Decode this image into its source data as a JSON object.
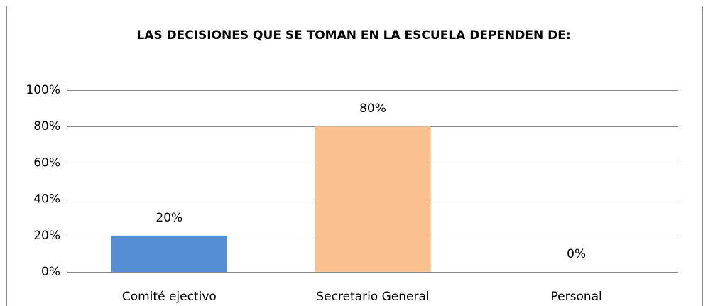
{
  "chart_data": {
    "type": "bar",
    "title": "LAS DECISIONES QUE SE TOMAN EN LA ESCUELA DEPENDEN DE:",
    "categories": [
      "Comité ejectivo",
      "Secretario General",
      "Personal"
    ],
    "values": [
      20,
      80,
      0
    ],
    "value_labels": [
      "20%",
      "80%",
      "0%"
    ],
    "colors": [
      "#558ed5",
      "#fac090",
      "#a5a5a5"
    ],
    "ylim": [
      0,
      100
    ],
    "yticks": [
      {
        "value": 0,
        "label": "0%"
      },
      {
        "value": 20,
        "label": "20%"
      },
      {
        "value": 40,
        "label": "40%"
      },
      {
        "value": 60,
        "label": "60%"
      },
      {
        "value": 80,
        "label": "80%"
      },
      {
        "value": 100,
        "label": "100%"
      }
    ],
    "grid": true
  }
}
